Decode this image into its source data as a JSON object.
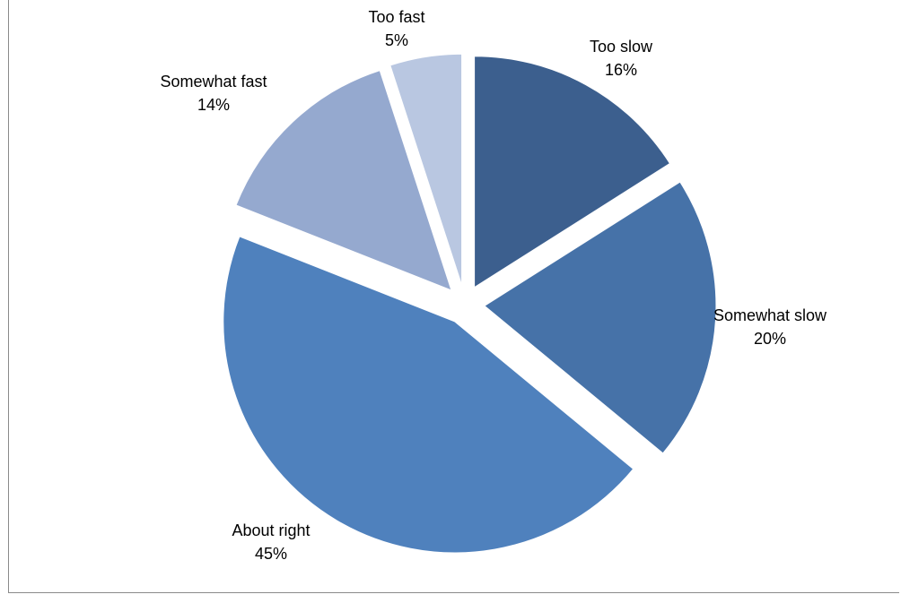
{
  "chart_data": {
    "type": "pie",
    "title": "",
    "slices": [
      {
        "label": "Too slow",
        "value": 16,
        "display": "16%",
        "color": "#3c5f8e"
      },
      {
        "label": "Somewhat slow",
        "value": 20,
        "display": "20%",
        "color": "#4672a8"
      },
      {
        "label": "About right",
        "value": 45,
        "display": "45%",
        "color": "#4f81bd"
      },
      {
        "label": "Somewhat fast",
        "value": 14,
        "display": "14%",
        "color": "#95a9cf"
      },
      {
        "label": "Too fast",
        "value": 5,
        "display": "5%",
        "color": "#b9c7e1"
      }
    ],
    "legend": "none",
    "exploded": true
  }
}
